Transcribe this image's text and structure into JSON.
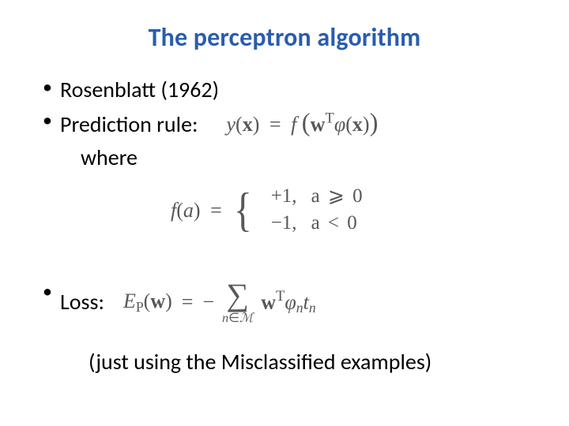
{
  "colors": {
    "title": "#2a5cb0",
    "body_text": "#000000",
    "math_text": "#585858",
    "background": "#ffffff"
  },
  "fonts": {
    "title_size": 32,
    "body_size": 28,
    "math_size": 26,
    "title_family": "Calibri",
    "math_family": "Cambria Math"
  },
  "title": "The perceptron algorithm",
  "bullets": {
    "b1": "Rosenblatt (1962)",
    "b2": "Prediction rule:",
    "where": "where",
    "b3": "Loss:"
  },
  "equations": {
    "yx": {
      "lhs_y": "y",
      "lhs_x": "x",
      "eq": "=",
      "rhs_f": "f",
      "rhs_w": "w",
      "rhs_T": "T",
      "rhs_phi": "φ",
      "rhs_x2": "x"
    },
    "fa": {
      "lhs_f": "f",
      "lhs_a": "a",
      "eq": "=",
      "case1_val": "+1,",
      "case1_cond_a": "a",
      "case1_cond_rel": "⩾",
      "case1_cond_rhs": "0",
      "case2_val": "−1,",
      "case2_cond_a": "a",
      "case2_cond_rel": "<",
      "case2_cond_rhs": "0"
    },
    "loss": {
      "E": "E",
      "P": "P",
      "w_arg": "w",
      "eq": "=",
      "neg": "−",
      "sum_sub_n": "n",
      "sum_sub_in": "∈",
      "sum_sub_M": "ℳ",
      "w": "w",
      "T": "T",
      "phi": "φ",
      "phi_sub": "n",
      "t": "t",
      "t_sub": "n"
    }
  },
  "caption": "(just using the Misclassified examples)"
}
